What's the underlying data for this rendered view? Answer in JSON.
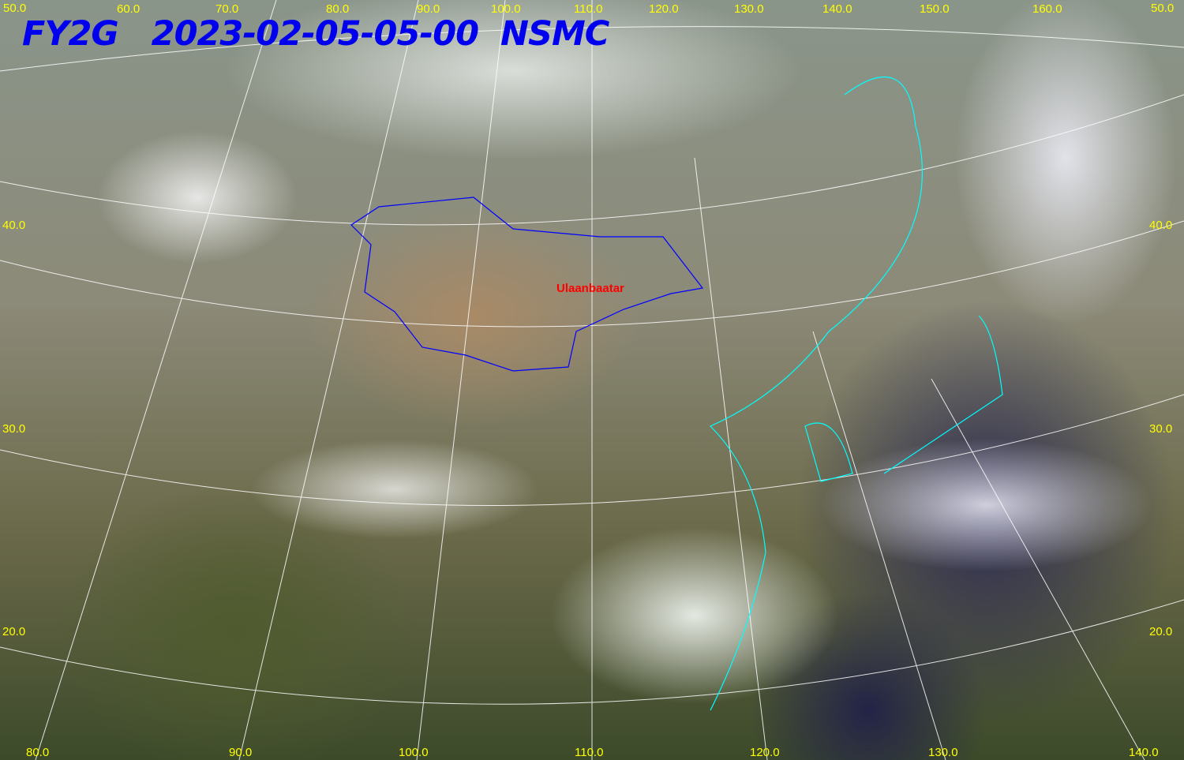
{
  "title": {
    "satellite": "FY2G",
    "datetime": "2023-02-05-05-00",
    "agency": "NSMC",
    "color": "#0000ee"
  },
  "city_label": {
    "name": "Ulaanbaatar",
    "color": "#ff0000"
  },
  "grid": {
    "label_color": "#ffff00",
    "line_color": "#ffffff",
    "coastline_color": "#00ffff",
    "border_color": "#0000ff"
  },
  "top_labels": [
    "50.0",
    "60.0",
    "70.0",
    "80.0",
    "90.0",
    "100.0",
    "110.0",
    "120.0",
    "130.0",
    "140.0",
    "150.0",
    "160.0",
    "50.0"
  ],
  "left_labels": [
    "40.0",
    "30.0",
    "20.0"
  ],
  "right_labels": [
    "40.0",
    "30.0",
    "20.0"
  ],
  "bottom_labels": [
    "80.0",
    "90.0",
    "100.0",
    "110.0",
    "120.0",
    "130.0",
    "140.0"
  ]
}
